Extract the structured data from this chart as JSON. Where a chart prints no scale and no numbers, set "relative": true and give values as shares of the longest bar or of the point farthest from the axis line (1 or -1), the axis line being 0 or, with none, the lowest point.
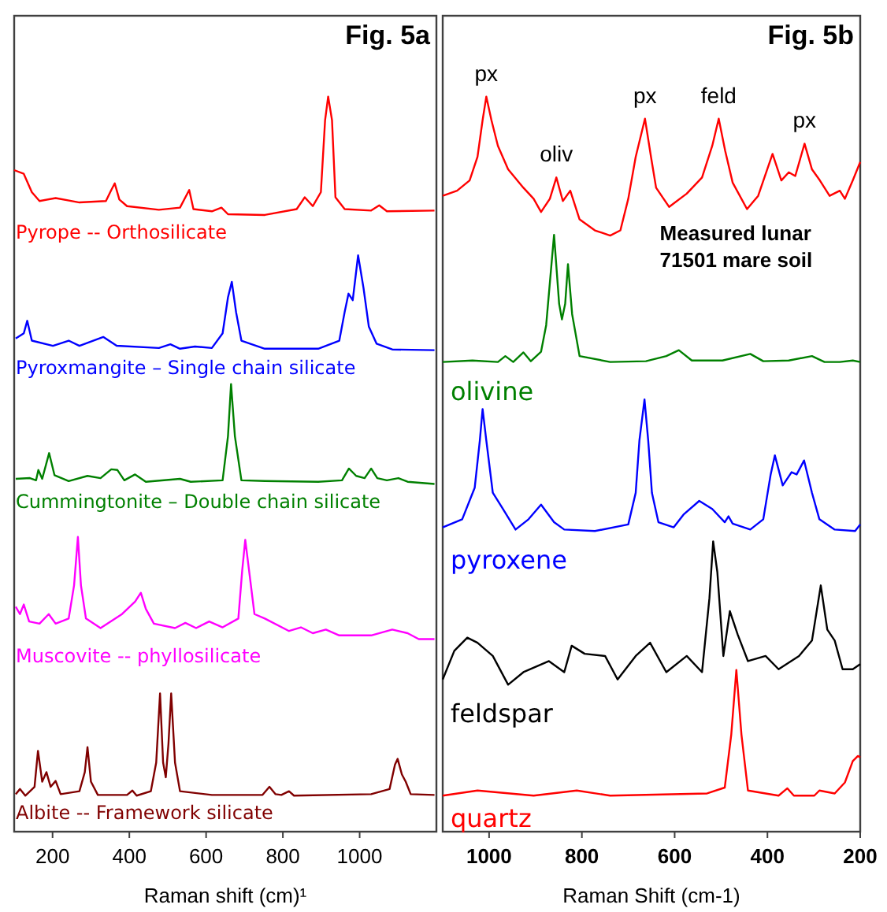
{
  "chart_data": [
    {
      "type": "line",
      "title": "Fig. 5a",
      "xlabel": "Raman shift (cm)¹",
      "relative": true,
      "xlim": [
        100,
        1200
      ],
      "xticks": [
        200,
        400,
        600,
        800,
        1000
      ],
      "grid": false,
      "series": [
        {
          "name": "Pyrope -- Orthosilicate",
          "color": "#ff0000",
          "x": [
            100,
            125,
            146,
            166,
            208,
            270,
            339,
            353,
            362,
            374,
            394,
            477,
            532,
            556,
            567,
            615,
            640,
            657,
            753,
            836,
            857,
            878,
            899,
            910,
            918,
            928,
            937,
            961,
            1030,
            1051,
            1071,
            1195
          ],
          "values": [
            0.9,
            0.895,
            0.87,
            0.858,
            0.862,
            0.856,
            0.858,
            0.873,
            0.882,
            0.86,
            0.851,
            0.846,
            0.849,
            0.873,
            0.847,
            0.844,
            0.849,
            0.84,
            0.839,
            0.847,
            0.863,
            0.851,
            0.87,
            0.968,
            1,
            0.968,
            0.863,
            0.847,
            0.845,
            0.852,
            0.844,
            0.845
          ]
        },
        {
          "name": "Pyroxmangite – Single chain silicate",
          "color": "#0000ff",
          "x": [
            104,
            125,
            134,
            146,
            201,
            242,
            270,
            332,
            367,
            477,
            507,
            532,
            571,
            615,
            643,
            657,
            667,
            678,
            692,
            753,
            892,
            947,
            961,
            971,
            982,
            996,
            1010,
            1024,
            1044,
            1085,
            1195
          ],
          "values": [
            0.671,
            0.678,
            0.695,
            0.668,
            0.661,
            0.668,
            0.661,
            0.673,
            0.661,
            0.658,
            0.663,
            0.657,
            0.66,
            0.658,
            0.678,
            0.727,
            0.748,
            0.707,
            0.668,
            0.657,
            0.657,
            0.668,
            0.707,
            0.732,
            0.723,
            0.784,
            0.74,
            0.687,
            0.664,
            0.656,
            0.655
          ]
        },
        {
          "name": "Cummingtonite – Double chain silicate",
          "color": "#008000",
          "x": [
            104,
            141,
            157,
            163,
            173,
            191,
            205,
            242,
            291,
            325,
            353,
            369,
            387,
            415,
            443,
            532,
            560,
            643,
            657,
            665,
            675,
            692,
            753,
            892,
            954,
            972,
            991,
            1013,
            1030,
            1046,
            1071,
            1101,
            1125,
            1195
          ],
          "values": [
            0.48,
            0.481,
            0.478,
            0.492,
            0.48,
            0.515,
            0.485,
            0.477,
            0.484,
            0.481,
            0.493,
            0.492,
            0.478,
            0.486,
            0.476,
            0.48,
            0.476,
            0.478,
            0.538,
            0.609,
            0.538,
            0.478,
            0.477,
            0.476,
            0.478,
            0.494,
            0.484,
            0.481,
            0.494,
            0.481,
            0.478,
            0.481,
            0.476,
            0.473
          ]
        },
        {
          "name": "Muscovite -- phyllosilicate",
          "color": "#ff00ff",
          "x": [
            104,
            115,
            125,
            139,
            166,
            190,
            208,
            242,
            256,
            266,
            274,
            287,
            325,
            381,
            415,
            430,
            443,
            464,
            519,
            546,
            574,
            608,
            643,
            684,
            694,
            702,
            712,
            726,
            753,
            816,
            847,
            878,
            912,
            947,
            1030,
            1085,
            1125,
            1154,
            1195
          ],
          "values": [
            0.306,
            0.296,
            0.309,
            0.286,
            0.283,
            0.296,
            0.283,
            0.29,
            0.335,
            0.401,
            0.335,
            0.29,
            0.277,
            0.296,
            0.313,
            0.325,
            0.303,
            0.283,
            0.277,
            0.284,
            0.277,
            0.286,
            0.278,
            0.29,
            0.355,
            0.397,
            0.355,
            0.296,
            0.29,
            0.273,
            0.278,
            0.27,
            0.275,
            0.267,
            0.267,
            0.275,
            0.27,
            0.262,
            0.262
          ]
        },
        {
          "name": "Albite -- Framework silicate",
          "color": "#800000",
          "x": [
            104,
            115,
            129,
            153,
            162,
            173,
            184,
            195,
            208,
            221,
            270,
            284,
            291,
            300,
            318,
            394,
            408,
            419,
            456,
            470,
            480,
            488,
            495,
            502,
            509,
            519,
            532,
            615,
            747,
            765,
            781,
            796,
            816,
            829,
            1030,
            1078,
            1092,
            1099,
            1110,
            1120,
            1133,
            1195
          ],
          "values": [
            0.051,
            0.058,
            0.049,
            0.061,
            0.11,
            0.068,
            0.081,
            0.061,
            0.069,
            0.051,
            0.055,
            0.081,
            0.115,
            0.068,
            0.05,
            0.05,
            0.056,
            0.049,
            0.055,
            0.094,
            0.188,
            0.094,
            0.074,
            0.12,
            0.188,
            0.094,
            0.055,
            0.05,
            0.05,
            0.061,
            0.051,
            0.05,
            0.055,
            0.049,
            0.051,
            0.058,
            0.091,
            0.099,
            0.078,
            0.068,
            0.051,
            0.05
          ]
        }
      ]
    },
    {
      "type": "line",
      "title": "Fig. 5b",
      "xlabel": "Raman Shift (cm-1)",
      "relative": true,
      "xlim": [
        1100,
        200
      ],
      "xticks": [
        1000,
        800,
        600,
        400,
        200
      ],
      "grid": false,
      "annotations": [
        {
          "text": "px",
          "x": 1006,
          "y": 1
        },
        {
          "text": "oliv",
          "x": 855,
          "y": 0.89
        },
        {
          "text": "px",
          "x": 664,
          "y": 0.97
        },
        {
          "text": "feld",
          "x": 505,
          "y": 0.97
        },
        {
          "text": "px",
          "x": 320,
          "y": 0.936
        },
        "Measured lunar 71501 mare soil"
      ],
      "series": [
        {
          "color": "#ff0000",
          "x": [
            1100,
            1069,
            1042,
            1025,
            1014,
            1006,
            995,
            981,
            959,
            926,
            904,
            888,
            869,
            855,
            841,
            825,
            805,
            772,
            739,
            717,
            700,
            684,
            664,
            651,
            640,
            612,
            574,
            541,
            519,
            505,
            491,
            475,
            444,
            420,
            389,
            370,
            354,
            340,
            320,
            304,
            287,
            266,
            244,
            233,
            216,
            200
          ],
          "values": [
            0.865,
            0.872,
            0.886,
            0.918,
            0.968,
            1,
            0.968,
            0.933,
            0.901,
            0.876,
            0.861,
            0.843,
            0.861,
            0.89,
            0.858,
            0.872,
            0.833,
            0.818,
            0.811,
            0.818,
            0.861,
            0.918,
            0.97,
            0.918,
            0.876,
            0.85,
            0.868,
            0.89,
            0.933,
            0.97,
            0.926,
            0.883,
            0.847,
            0.865,
            0.922,
            0.886,
            0.897,
            0.892,
            0.936,
            0.901,
            0.886,
            0.865,
            0.872,
            0.861,
            0.886,
            0.911
          ]
        },
        {
          "name": "olivine",
          "color": "#008000",
          "x": [
            1100,
            1036,
            981,
            965,
            948,
            926,
            910,
            888,
            877,
            860,
            849,
            843,
            836,
            830,
            821,
            805,
            739,
            662,
            618,
            591,
            563,
            497,
            437,
            409,
            354,
            304,
            277,
            244,
            216,
            200
          ],
          "values": [
            0.639,
            0.641,
            0.639,
            0.647,
            0.639,
            0.652,
            0.64,
            0.653,
            0.689,
            0.812,
            0.718,
            0.697,
            0.718,
            0.772,
            0.704,
            0.647,
            0.639,
            0.64,
            0.647,
            0.655,
            0.641,
            0.641,
            0.65,
            0.64,
            0.641,
            0.647,
            0.639,
            0.639,
            0.641,
            0.639
          ]
        },
        {
          "name": "pyroxene",
          "color": "#0000ff",
          "x": [
            1100,
            1058,
            1031,
            1020,
            1014,
            1006,
            992,
            970,
            943,
            915,
            888,
            860,
            838,
            772,
            700,
            684,
            676,
            665,
            657,
            649,
            635,
            602,
            580,
            547,
            519,
            492,
            484,
            475,
            437,
            409,
            393,
            384,
            367,
            348,
            337,
            321,
            304,
            288,
            255,
            211,
            200
          ],
          "values": [
            0.414,
            0.425,
            0.468,
            0.532,
            0.575,
            0.532,
            0.461,
            0.439,
            0.411,
            0.425,
            0.445,
            0.421,
            0.411,
            0.409,
            0.418,
            0.461,
            0.532,
            0.588,
            0.532,
            0.461,
            0.421,
            0.414,
            0.432,
            0.45,
            0.439,
            0.421,
            0.429,
            0.419,
            0.411,
            0.425,
            0.486,
            0.512,
            0.471,
            0.489,
            0.486,
            0.505,
            0.461,
            0.425,
            0.411,
            0.409,
            0.418
          ]
        },
        {
          "name": "feldspar",
          "color": "#000000",
          "x": [
            1100,
            1075,
            1047,
            1025,
            992,
            959,
            926,
            871,
            838,
            822,
            794,
            750,
            723,
            684,
            653,
            618,
            574,
            541,
            525,
            517,
            508,
            495,
            481,
            464,
            442,
            404,
            376,
            332,
            304,
            285,
            271,
            255,
            238,
            216,
            200
          ],
          "values": [
            0.207,
            0.246,
            0.264,
            0.257,
            0.239,
            0.2,
            0.217,
            0.232,
            0.217,
            0.253,
            0.242,
            0.239,
            0.207,
            0.239,
            0.257,
            0.217,
            0.239,
            0.217,
            0.318,
            0.395,
            0.353,
            0.239,
            0.3,
            0.268,
            0.232,
            0.239,
            0.221,
            0.239,
            0.26,
            0.335,
            0.275,
            0.26,
            0.221,
            0.221,
            0.228
          ]
        },
        {
          "name": "quartz",
          "color": "#ff0000",
          "x": [
            1100,
            1025,
            904,
            811,
            739,
            530,
            492,
            478,
            467,
            456,
            442,
            376,
            357,
            343,
            299,
            288,
            255,
            233,
            216,
            205,
            200
          ],
          "values": [
            0.049,
            0.056,
            0.049,
            0.056,
            0.049,
            0.052,
            0.06,
            0.132,
            0.22,
            0.132,
            0.056,
            0.049,
            0.059,
            0.049,
            0.049,
            0.056,
            0.052,
            0.067,
            0.096,
            0.103,
            0.101
          ]
        }
      ]
    }
  ]
}
